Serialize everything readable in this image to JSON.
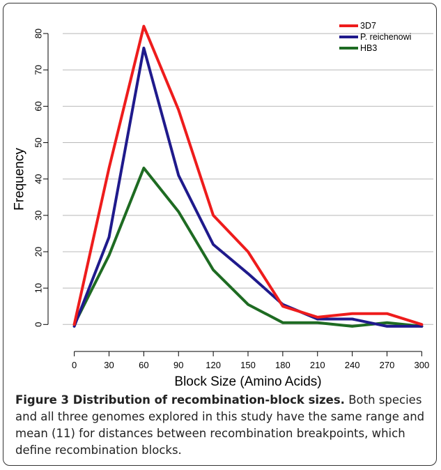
{
  "chart_data": {
    "type": "line",
    "xlabel": "Block Size (Amino Acids)",
    "ylabel": "Frequency",
    "x": [
      0,
      30,
      60,
      90,
      120,
      150,
      180,
      210,
      240,
      270,
      300
    ],
    "xlim": [
      0,
      300
    ],
    "ylim": [
      0,
      80
    ],
    "yticks": [
      0,
      10,
      20,
      30,
      40,
      50,
      60,
      70,
      80
    ],
    "grid": "horizontal",
    "legend": "top-right",
    "series": [
      {
        "name": "3D7",
        "color": "#ee1c1c",
        "values": [
          0,
          43,
          82,
          59,
          30,
          20,
          5,
          2,
          3,
          3,
          0
        ]
      },
      {
        "name": "P. reichenowi",
        "color": "#1f1a8c",
        "values": [
          -0.5,
          24,
          76,
          41,
          22,
          14,
          5.5,
          1.5,
          1.5,
          -0.5,
          -0.5
        ]
      },
      {
        "name": "HB3",
        "color": "#1e6b22",
        "values": [
          0,
          19,
          43,
          31,
          15,
          5.5,
          0.5,
          0.5,
          -0.5,
          0.5,
          -0.5
        ]
      }
    ]
  },
  "caption": {
    "label": "Figure 3 Distribution of recombination-block sizes.",
    "text": " Both species and all three genomes explored in this study have the same range and mean (11) for distances between recombination breakpoints, which define recombination blocks."
  }
}
